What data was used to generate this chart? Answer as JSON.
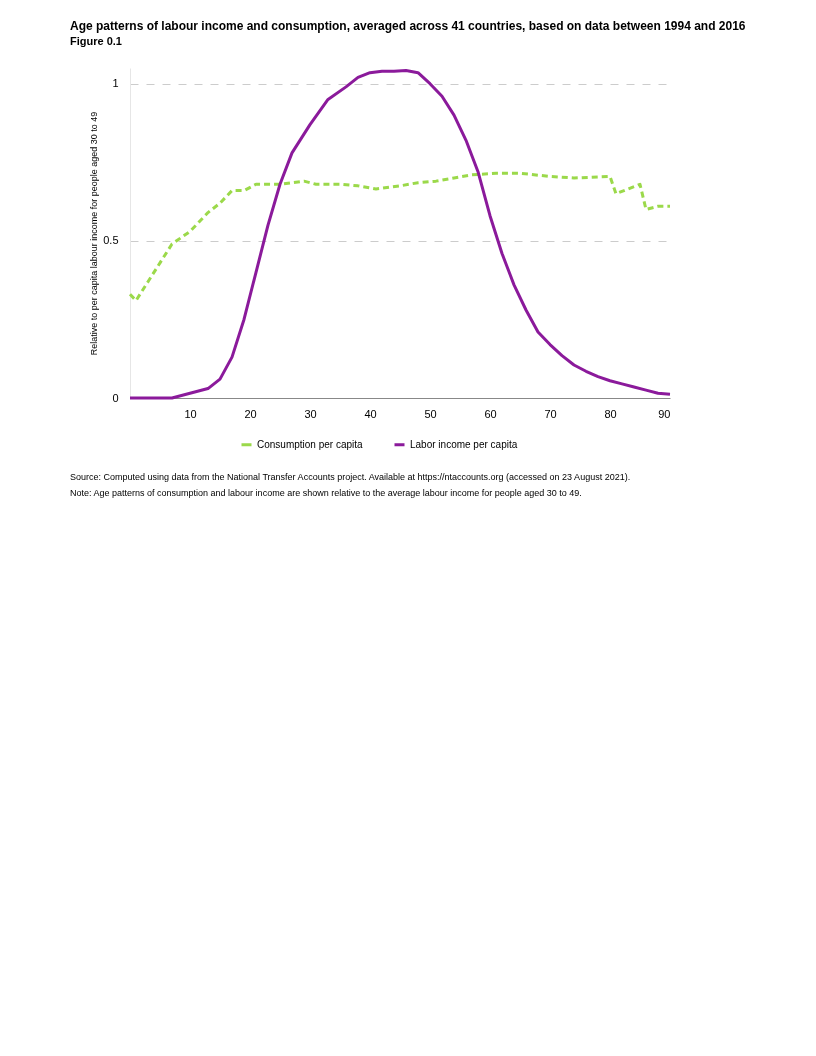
{
  "chart_data": {
    "type": "line",
    "title": "Age patterns of labour income and consumption, averaged across 41 countries, based on data between 1994 and 2016",
    "subtitle": "Figure 0.1",
    "ylabel": "Relative to per capita labour income for people aged 30 to 49",
    "xlim": [
      0,
      90
    ],
    "xticks": [
      10,
      20,
      30,
      40,
      50,
      60,
      70,
      80,
      90
    ],
    "ylim": [
      0,
      1.05
    ],
    "yticks": [
      0,
      0.5,
      1
    ],
    "grid": "y",
    "legend": "bottom",
    "series": [
      {
        "name": "Consumption per capita",
        "color": "#9bd94a",
        "line_style": "dashed",
        "x": [
          0,
          1,
          3,
          5,
          7,
          10,
          13,
          15,
          17,
          19,
          21,
          25,
          29,
          31,
          35,
          38,
          41,
          45,
          48,
          51,
          54,
          57,
          61,
          65,
          70,
          74,
          80,
          81,
          85,
          86,
          88,
          90
        ],
        "values": [
          0.33,
          0.31,
          0.37,
          0.43,
          0.49,
          0.53,
          0.59,
          0.62,
          0.66,
          0.66,
          0.68,
          0.68,
          0.69,
          0.68,
          0.68,
          0.675,
          0.665,
          0.675,
          0.685,
          0.69,
          0.7,
          0.71,
          0.715,
          0.715,
          0.705,
          0.7,
          0.705,
          0.65,
          0.68,
          0.6,
          0.61,
          0.61
        ]
      },
      {
        "name": "Labor income per capita",
        "color": "#8b1a9b",
        "line_style": "solid",
        "x": [
          0,
          7,
          10,
          13,
          15,
          17,
          19,
          21,
          23,
          25,
          27,
          30,
          33,
          36,
          38,
          40,
          42,
          44,
          46,
          48,
          50,
          52,
          54,
          56,
          58,
          60,
          62,
          64,
          66,
          68,
          70,
          72,
          74,
          76,
          78,
          80,
          82,
          84,
          86,
          88,
          90
        ],
        "values": [
          0,
          0,
          0.015,
          0.03,
          0.06,
          0.13,
          0.25,
          0.4,
          0.55,
          0.68,
          0.78,
          0.87,
          0.95,
          0.99,
          1.02,
          1.035,
          1.04,
          1.04,
          1.042,
          1.035,
          1.0,
          0.96,
          0.9,
          0.82,
          0.72,
          0.58,
          0.46,
          0.36,
          0.28,
          0.21,
          0.17,
          0.135,
          0.105,
          0.085,
          0.068,
          0.055,
          0.045,
          0.035,
          0.025,
          0.015,
          0.012
        ]
      }
    ],
    "annotations": [
      "Source: Computed using data from the National Transfer Accounts project. Available at https://ntaccounts.org (accessed on 23 August 2021).",
      "Note: Age patterns of consumption and labour income are shown relative to the average labour income for people aged 30 to 49."
    ]
  }
}
